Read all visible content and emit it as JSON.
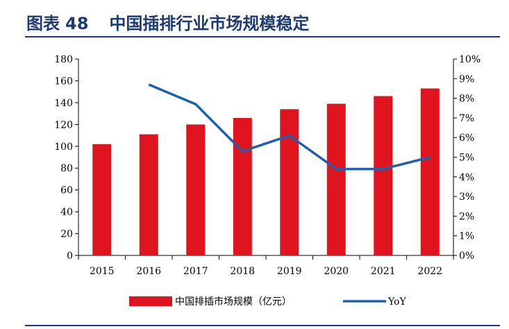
{
  "figure": {
    "label": "图表",
    "number": "48",
    "title": "中国插排行业市场规模稳定"
  },
  "chart_data": {
    "type": "bar",
    "categories": [
      "2015",
      "2016",
      "2017",
      "2018",
      "2019",
      "2020",
      "2021",
      "2022"
    ],
    "series": [
      {
        "name": "中国排插市场规模（亿元）",
        "type": "bar",
        "axis": "left",
        "color": "#e0141e",
        "values": [
          102,
          111,
          120,
          126,
          134,
          139,
          146,
          153
        ]
      },
      {
        "name": "YoY",
        "type": "line",
        "axis": "right",
        "color": "#1f5fb0",
        "values": [
          null,
          8.7,
          7.7,
          5.3,
          6.1,
          4.4,
          4.4,
          5.0
        ]
      }
    ],
    "y_left": {
      "min": 0,
      "max": 180,
      "step": 20
    },
    "y_right": {
      "min": 0,
      "max": 10,
      "step": 1,
      "unit": "%"
    },
    "legend_position": "bottom-center",
    "grid": false
  }
}
